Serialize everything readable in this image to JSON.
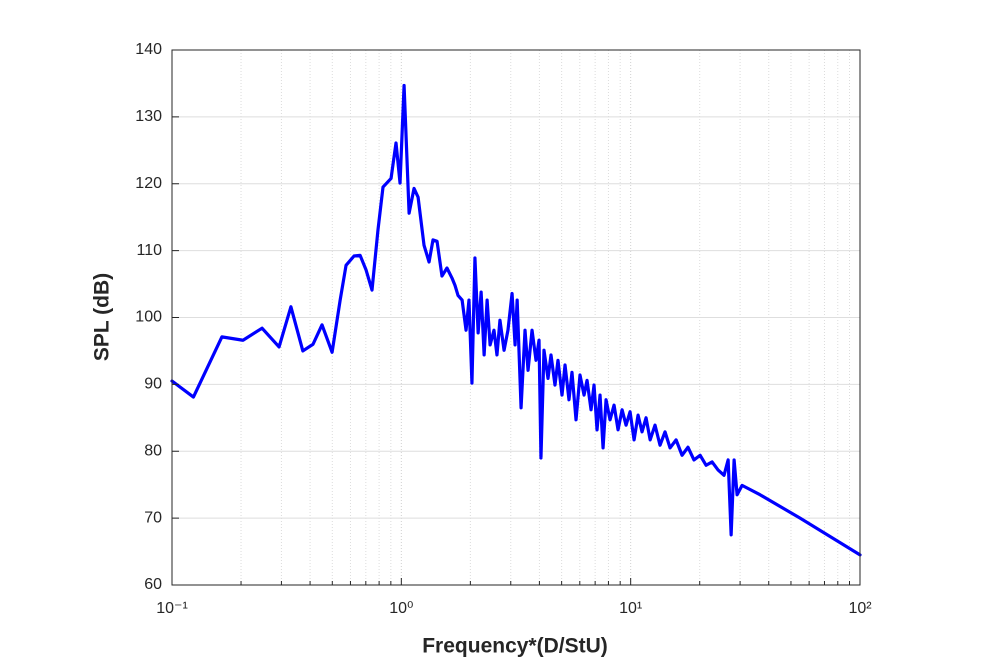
{
  "chart_data": {
    "type": "line",
    "xlabel": "Frequency*(D/StU)",
    "ylabel": "SPL (dB)",
    "xscale": "log",
    "xlim": [
      0.1,
      100
    ],
    "ylim": [
      60,
      140
    ],
    "xticks": [
      {
        "value": 0.1,
        "label": "10⁻¹"
      },
      {
        "value": 1,
        "label": "10⁰"
      },
      {
        "value": 10,
        "label": "10¹"
      },
      {
        "value": 100,
        "label": "10²"
      }
    ],
    "yticks": [
      60,
      70,
      80,
      90,
      100,
      110,
      120,
      130,
      140
    ],
    "grid": true,
    "minor_grid": true,
    "color": "#0000ff",
    "x": [
      0.1,
      0.124,
      0.165,
      0.204,
      0.247,
      0.293,
      0.33,
      0.372,
      0.412,
      0.451,
      0.499,
      0.541,
      0.574,
      0.622,
      0.661,
      0.702,
      0.745,
      0.791,
      0.832,
      0.902,
      0.948,
      0.987,
      1.028,
      1.081,
      1.136,
      1.183,
      1.256,
      1.321,
      1.374,
      1.431,
      1.504,
      1.581,
      1.663,
      1.714,
      1.767,
      1.841,
      1.915,
      1.972,
      2.032,
      2.094,
      2.162,
      2.228,
      2.296,
      2.366,
      2.438,
      2.535,
      2.612,
      2.692,
      2.805,
      2.917,
      3.04,
      3.133,
      3.199,
      3.327,
      3.462,
      3.569,
      3.715,
      3.866,
      3.985,
      4.063,
      4.188,
      4.361,
      4.494,
      4.677,
      4.82,
      5.019,
      5.173,
      5.383,
      5.548,
      5.777,
      6.013,
      6.262,
      6.453,
      6.718,
      6.923,
      7.134,
      7.352,
      7.579,
      7.81,
      8.129,
      8.465,
      8.81,
      9.175,
      9.549,
      9.938,
      10.35,
      10.77,
      11.21,
      11.67,
      12.16,
      12.77,
      13.43,
      14.12,
      14.85,
      15.78,
      16.75,
      17.78,
      18.88,
      20.09,
      21.33,
      22.65,
      24.04,
      25.53,
      26.61,
      27.42,
      28.25,
      29.11,
      30.61,
      36.64,
      54.8,
      100
    ],
    "values": [
      90.5,
      88.1,
      97.1,
      96.6,
      98.4,
      95.6,
      101.6,
      95.0,
      96.0,
      98.9,
      94.8,
      102.6,
      107.8,
      109.2,
      109.3,
      107.1,
      104.1,
      113.1,
      119.5,
      120.8,
      126.1,
      120.1,
      134.7,
      115.6,
      119.3,
      118.0,
      110.8,
      108.3,
      111.6,
      111.4,
      106.2,
      107.4,
      105.9,
      104.8,
      103.3,
      102.6,
      98.1,
      102.6,
      90.2,
      108.9,
      97.7,
      103.8,
      94.4,
      102.6,
      95.9,
      98.1,
      94.4,
      99.6,
      95.1,
      98.1,
      103.6,
      95.9,
      102.6,
      86.5,
      98.1,
      92.1,
      98.1,
      93.6,
      96.6,
      79.0,
      95.1,
      90.9,
      94.4,
      89.9,
      93.6,
      88.4,
      92.9,
      87.7,
      91.8,
      84.7,
      91.4,
      88.4,
      90.6,
      86.2,
      89.9,
      83.2,
      88.4,
      80.5,
      87.7,
      84.7,
      86.9,
      83.2,
      86.2,
      83.9,
      85.9,
      81.7,
      85.4,
      82.9,
      85.0,
      81.7,
      83.9,
      80.9,
      82.9,
      80.5,
      81.7,
      79.4,
      80.6,
      78.7,
      79.4,
      77.9,
      78.4,
      77.2,
      76.4,
      78.7,
      67.5,
      78.7,
      73.5,
      74.9,
      73.5,
      70.0,
      64.5
    ]
  }
}
